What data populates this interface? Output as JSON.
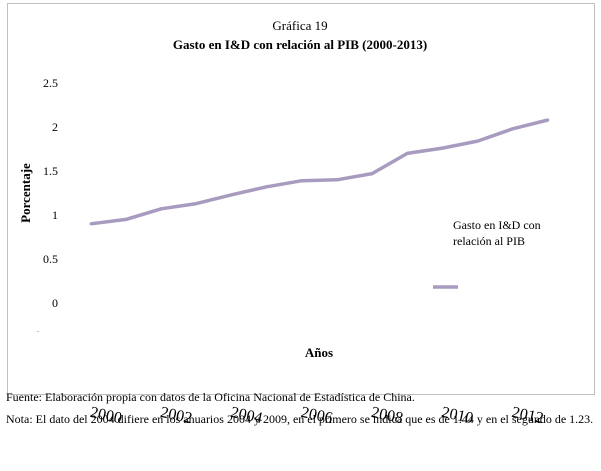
{
  "chart_data": {
    "type": "line",
    "title": "Gráfica 19",
    "subtitle": "Gasto en I&D con relación al PIB (2000-2013)",
    "xlabel": "Años",
    "ylabel": "Porcentaje",
    "x": [
      2000,
      2001,
      2002,
      2003,
      2004,
      2005,
      2006,
      2007,
      2008,
      2009,
      2010,
      2011,
      2012,
      2013
    ],
    "x_tick_labels": [
      "2000",
      "2002",
      "2004",
      "2006",
      "2008",
      "2010",
      "2012"
    ],
    "y_tick_labels": [
      "0",
      "0.5",
      "1",
      "1.5",
      "2",
      "2.5"
    ],
    "ylim": [
      0,
      2.5
    ],
    "series": [
      {
        "name": "Gasto en I&D con relación al PIB",
        "values": [
          0.9,
          0.95,
          1.07,
          1.13,
          1.23,
          1.32,
          1.39,
          1.4,
          1.47,
          1.7,
          1.76,
          1.84,
          1.98,
          2.08
        ],
        "color": "#a99bbf"
      }
    ],
    "legend": {
      "position": "right",
      "label_line1": "Gasto en I&D con",
      "label_line2": "relación al PIB"
    },
    "grid": false
  },
  "notes": {
    "source": "Fuente: Elaboración propia con datos de la Oficina Nacional de Estadística de China.",
    "note": "Nota: El dato del 2004 difiere en los anuarios 2004 y 2009, en el primero se indica que es de 1.44 y en el segundo de 1.23."
  }
}
